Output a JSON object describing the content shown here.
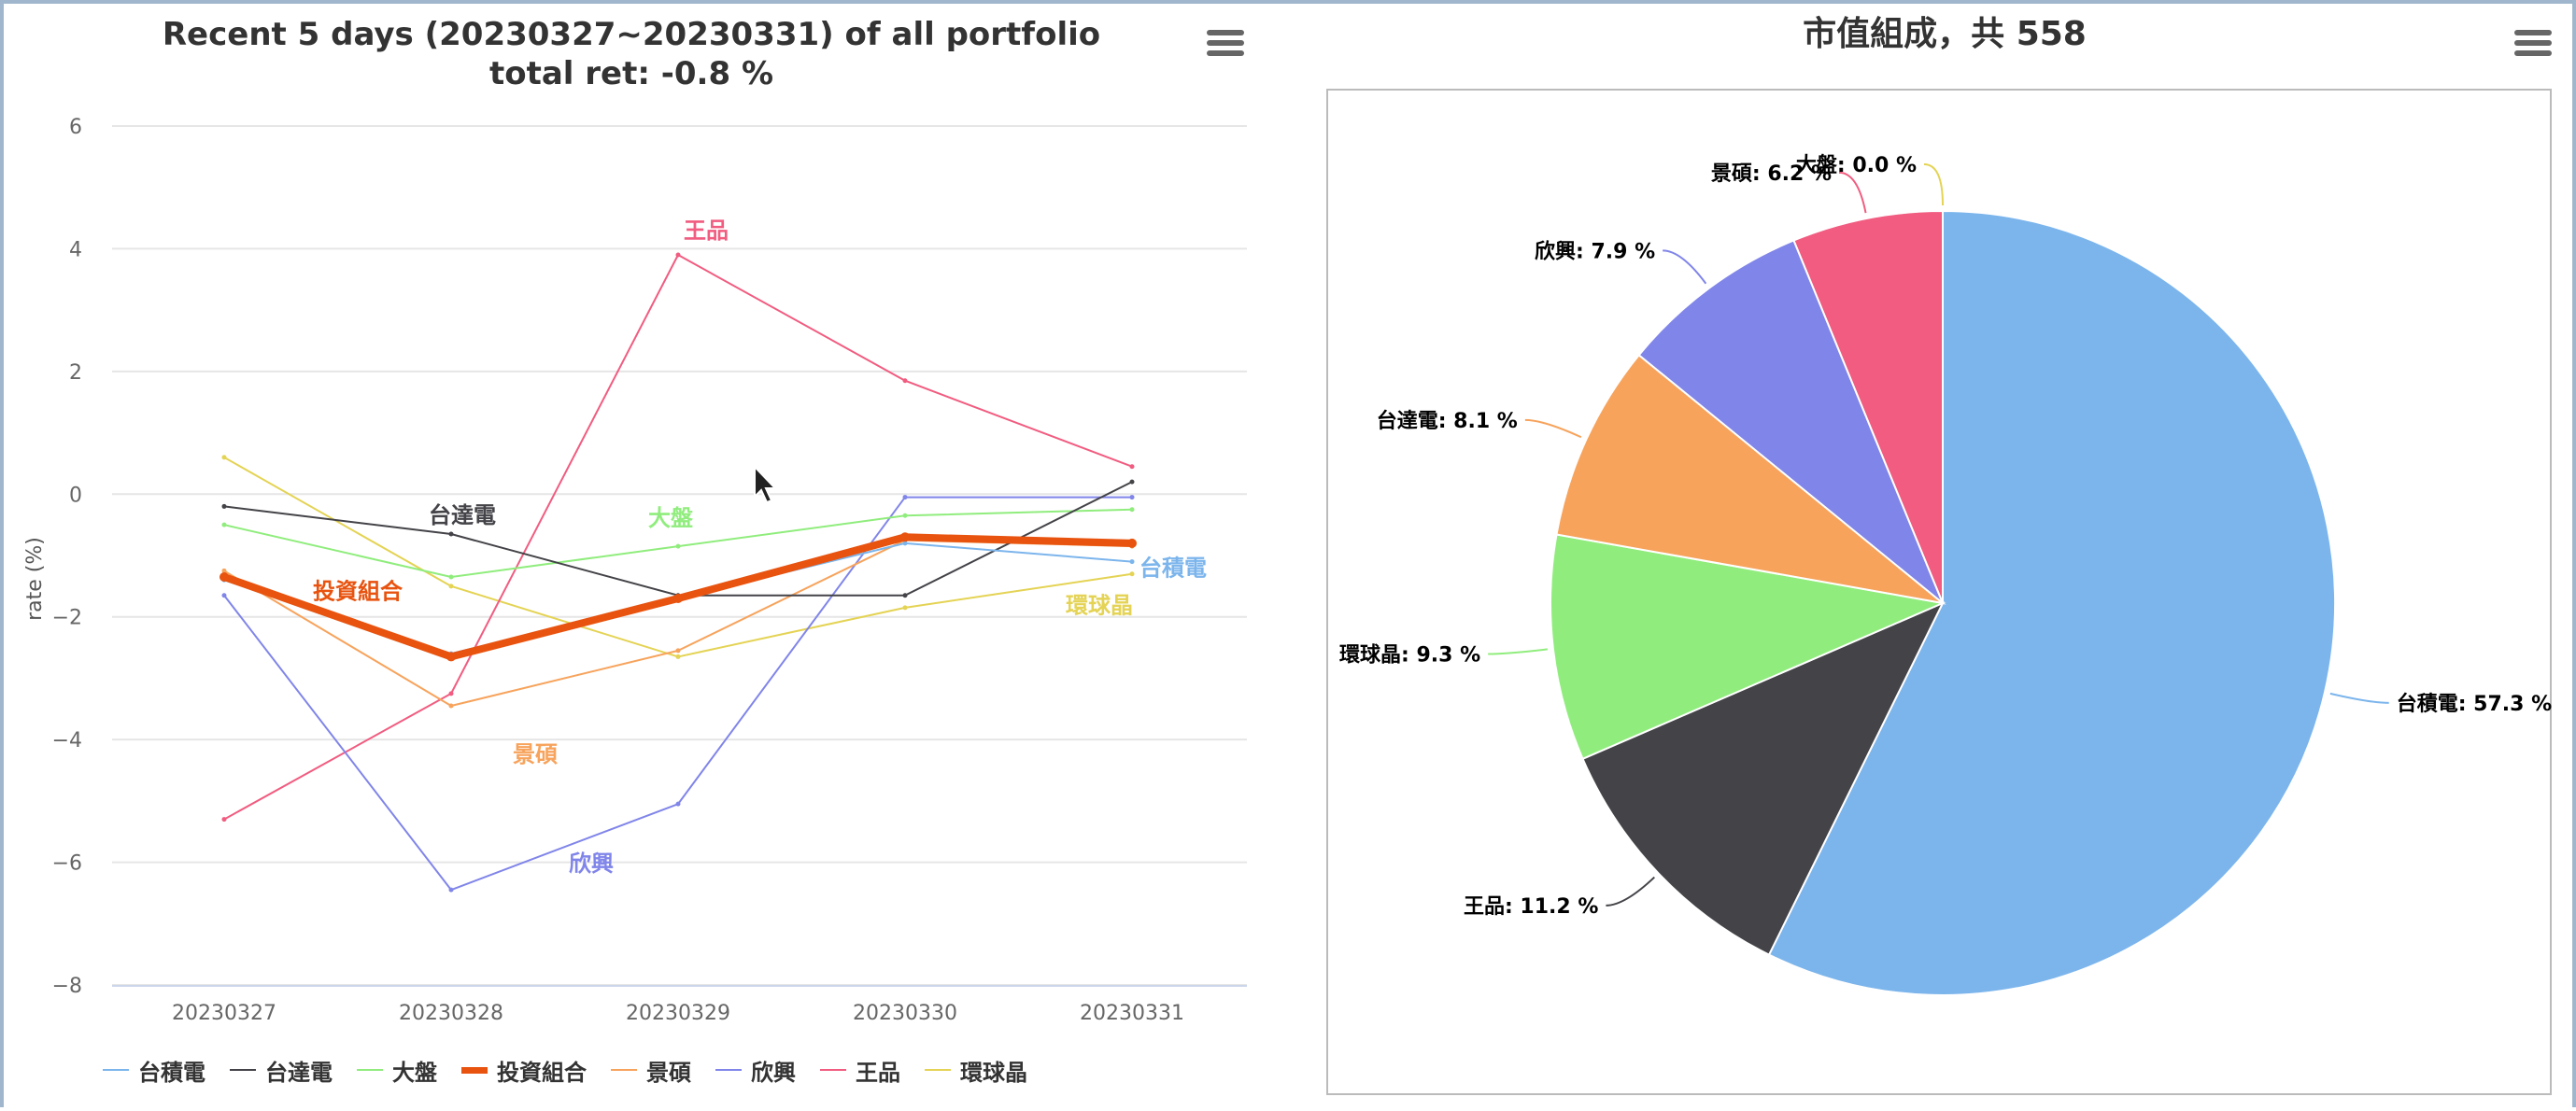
{
  "left_menu_icon": "hamburger-menu-icon",
  "right_menu_icon": "hamburger-menu-icon",
  "chart_data": [
    {
      "type": "line",
      "title": "Recent 5 days (20230327~20230331) of all portfolio",
      "subtitle": "total ret: -0.8 %",
      "xlabel": "",
      "ylabel": "rate (%)",
      "categories": [
        "20230327",
        "20230328",
        "20230329",
        "20230330",
        "20230331"
      ],
      "ylim": [
        -8,
        6
      ],
      "yticks": [
        6,
        4,
        2,
        0,
        -2,
        -4,
        -6,
        -8
      ],
      "ytick_labels": [
        "6",
        "4",
        "2",
        "0",
        "−2",
        "−4",
        "−6",
        "−8"
      ],
      "grid": true,
      "legend_position": "bottom",
      "series": [
        {
          "name": "台積電",
          "color": "#7cb5ec",
          "values": [
            -1.4,
            -2.6,
            -1.7,
            -0.8,
            -1.1
          ],
          "label_at": 4
        },
        {
          "name": "台達電",
          "color": "#434348",
          "values": [
            -0.2,
            -0.65,
            -1.65,
            -1.65,
            0.2
          ],
          "label_at": 1
        },
        {
          "name": "大盤",
          "color": "#90ed7d",
          "values": [
            -0.5,
            -1.35,
            -0.85,
            -0.35,
            -0.25
          ],
          "label_at": 2
        },
        {
          "name": "投資組合",
          "color": "#e8530f",
          "values": [
            -1.35,
            -2.65,
            -1.7,
            -0.7,
            -0.8
          ],
          "label_at": 1,
          "bold": true
        },
        {
          "name": "景碩",
          "color": "#f7a35c",
          "values": [
            -1.25,
            -3.45,
            -2.55,
            -0.75,
            -0.85
          ],
          "label_at": 1
        },
        {
          "name": "欣興",
          "color": "#8085e9",
          "values": [
            -1.65,
            -6.45,
            -5.05,
            -0.05,
            -0.05
          ],
          "label_at": 1
        },
        {
          "name": "王品",
          "color": "#f15c80",
          "values": [
            -5.3,
            -3.25,
            3.9,
            1.85,
            0.45
          ],
          "label_at": 2
        },
        {
          "name": "環球晶",
          "color": "#e4d354",
          "values": [
            0.6,
            -1.5,
            -2.65,
            -1.85,
            -1.3
          ],
          "label_at": 4
        }
      ]
    },
    {
      "type": "pie",
      "title": "市值組成，共 558",
      "slices": [
        {
          "name": "台積電",
          "value": 57.3,
          "label": "台積電: 57.3 %",
          "color": "#7cb5ec"
        },
        {
          "name": "王品",
          "value": 11.2,
          "label": "王品: 11.2 %",
          "color": "#434348"
        },
        {
          "name": "環球晶",
          "value": 9.3,
          "label": "環球晶: 9.3 %",
          "color": "#90ed7d"
        },
        {
          "name": "台達電",
          "value": 8.1,
          "label": "台達電: 8.1 %",
          "color": "#f7a35c"
        },
        {
          "name": "欣興",
          "value": 7.9,
          "label": "欣興: 7.9 %",
          "color": "#8085e9"
        },
        {
          "name": "景碩",
          "value": 6.2,
          "label": "景碩: 6.2 %",
          "color": "#f15c80"
        },
        {
          "name": "大盤",
          "value": 0.0,
          "label": "大盤: 0.0 %",
          "color": "#e4d354"
        }
      ]
    }
  ]
}
